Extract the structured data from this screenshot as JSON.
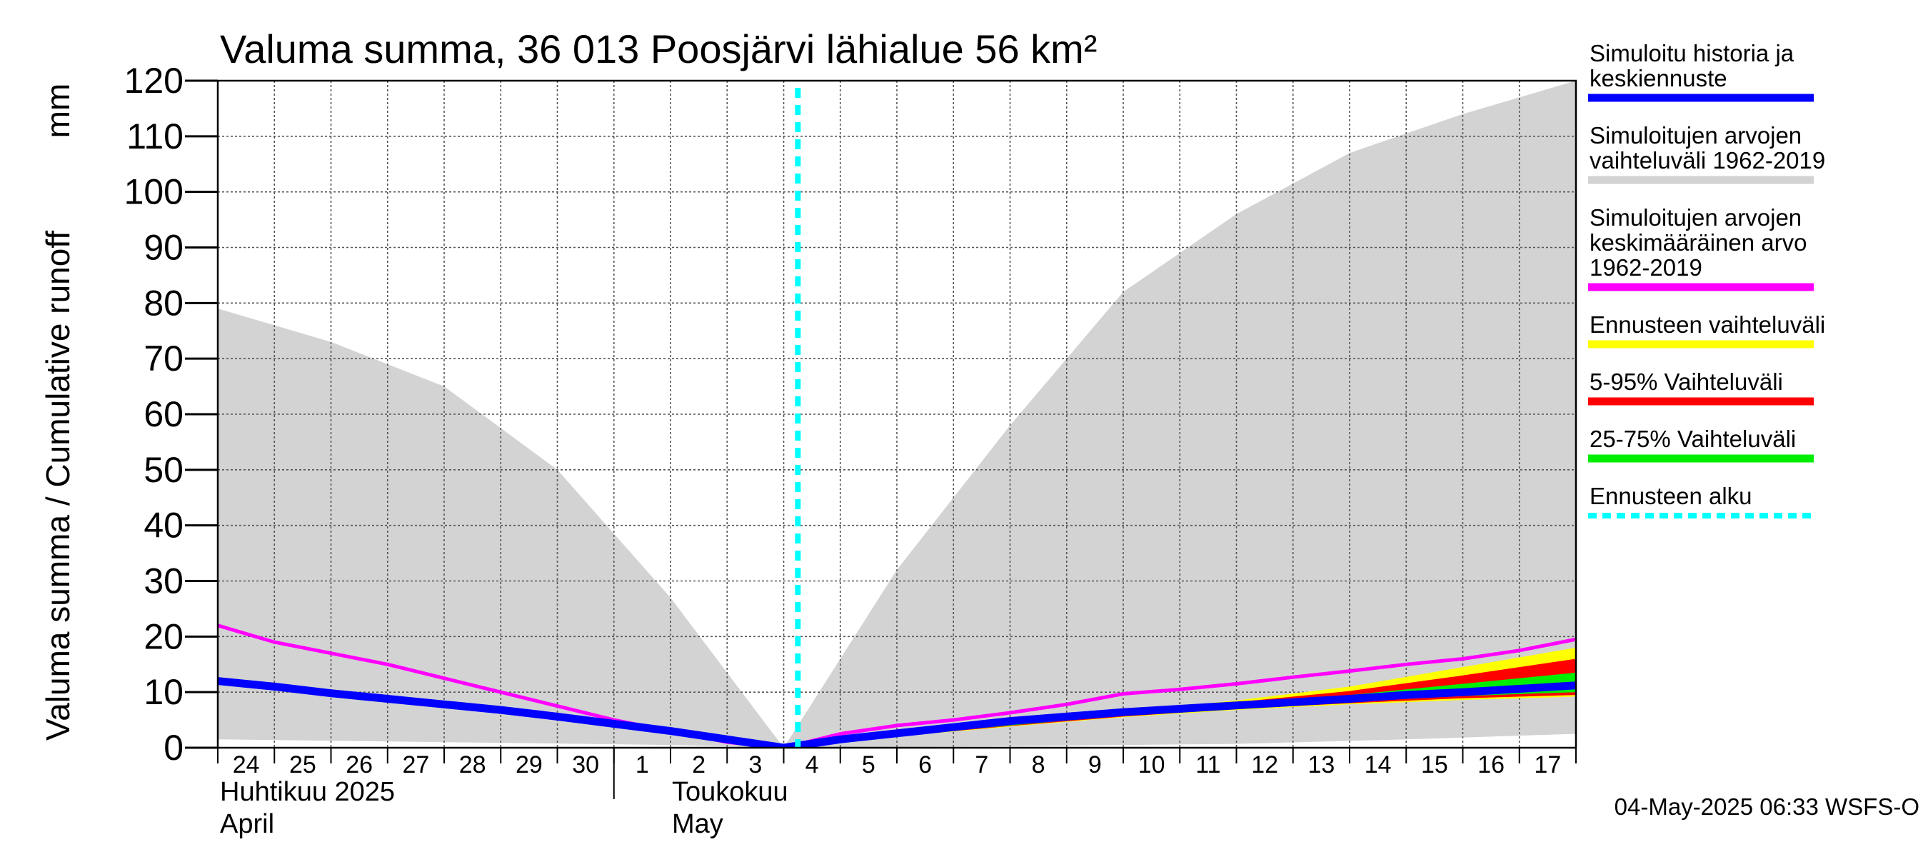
{
  "chart_data": {
    "type": "area",
    "title": "Valuma summa, 36 013 Poosjärvi lähialue 56 km²",
    "ylabel": "Valuma summa / Cumulative runoff",
    "yunit": "mm",
    "ylim": [
      0,
      120
    ],
    "yticks": [
      0,
      10,
      20,
      30,
      40,
      50,
      60,
      70,
      80,
      90,
      100,
      110,
      120
    ],
    "grid": true,
    "legend_position": "right",
    "x": [
      "2025-04-24",
      "2025-04-25",
      "2025-04-26",
      "2025-04-27",
      "2025-04-28",
      "2025-04-29",
      "2025-04-30",
      "2025-05-01",
      "2025-05-02",
      "2025-05-03",
      "2025-05-04",
      "2025-05-05",
      "2025-05-06",
      "2025-05-07",
      "2025-05-08",
      "2025-05-09",
      "2025-05-10",
      "2025-05-11",
      "2025-05-12",
      "2025-05-13",
      "2025-05-14",
      "2025-05-15",
      "2025-05-16",
      "2025-05-17",
      "2025-05-18"
    ],
    "xlim": [
      "2025-04-24",
      "2025-05-18"
    ],
    "xtick_labels": [
      "24",
      "25",
      "26",
      "27",
      "28",
      "29",
      "30",
      "1",
      "2",
      "3",
      "4",
      "5",
      "6",
      "7",
      "8",
      "9",
      "10",
      "11",
      "12",
      "13",
      "14",
      "15",
      "16",
      "17"
    ],
    "month_labels": [
      {
        "fi": "Huhtikuu  2025",
        "en": "April"
      },
      {
        "fi": "Toukokuu",
        "en": "May"
      }
    ],
    "forecast_start": "2025-05-04 06:00",
    "series": [
      {
        "name": "Simuloitujen arvojen vaihteluväli 1962-2019",
        "role": "hist-range",
        "color": "#d3d3d3",
        "upper": [
          {
            "x": "2025-04-24",
            "y": 79
          },
          {
            "x": "2025-04-26",
            "y": 73
          },
          {
            "x": "2025-04-28",
            "y": 65
          },
          {
            "x": "2025-04-30",
            "y": 50
          },
          {
            "x": "2025-05-02",
            "y": 27
          },
          {
            "x": "2025-05-04",
            "y": 0
          },
          {
            "x": "2025-05-06",
            "y": 32
          },
          {
            "x": "2025-05-08",
            "y": 58
          },
          {
            "x": "2025-05-10",
            "y": 82
          },
          {
            "x": "2025-05-12",
            "y": 96
          },
          {
            "x": "2025-05-14",
            "y": 107
          },
          {
            "x": "2025-05-16",
            "y": 114
          },
          {
            "x": "2025-05-18",
            "y": 120
          }
        ],
        "lower": [
          {
            "x": "2025-04-24",
            "y": 1.5
          },
          {
            "x": "2025-04-28",
            "y": 1
          },
          {
            "x": "2025-05-02",
            "y": 0.5
          },
          {
            "x": "2025-05-04",
            "y": 0
          },
          {
            "x": "2025-05-08",
            "y": 0.3
          },
          {
            "x": "2025-05-12",
            "y": 0.7
          },
          {
            "x": "2025-05-15",
            "y": 1.5
          },
          {
            "x": "2025-05-18",
            "y": 2.5
          }
        ]
      },
      {
        "name": "Ennusteen vaihteluväli",
        "role": "fc-range",
        "color": "#ffff00",
        "upper": [
          {
            "x": "2025-05-04",
            "y": 0
          },
          {
            "x": "2025-05-06",
            "y": 2.5
          },
          {
            "x": "2025-05-08",
            "y": 4.5
          },
          {
            "x": "2025-05-10",
            "y": 6.5
          },
          {
            "x": "2025-05-12",
            "y": 8.5
          },
          {
            "x": "2025-05-14",
            "y": 11
          },
          {
            "x": "2025-05-16",
            "y": 14.5
          },
          {
            "x": "2025-05-18",
            "y": 18
          }
        ],
        "lower": [
          {
            "x": "2025-05-04",
            "y": 0
          },
          {
            "x": "2025-05-06",
            "y": 2
          },
          {
            "x": "2025-05-08",
            "y": 3.8
          },
          {
            "x": "2025-05-10",
            "y": 5.5
          },
          {
            "x": "2025-05-12",
            "y": 6.8
          },
          {
            "x": "2025-05-14",
            "y": 7.8
          },
          {
            "x": "2025-05-16",
            "y": 8.6
          },
          {
            "x": "2025-05-18",
            "y": 9.2
          }
        ]
      },
      {
        "name": "5-95% Vaihteluväli",
        "role": "fc-5-95",
        "color": "#ff0000",
        "upper": [
          {
            "x": "2025-05-04",
            "y": 0
          },
          {
            "x": "2025-05-06",
            "y": 2.4
          },
          {
            "x": "2025-05-08",
            "y": 4.4
          },
          {
            "x": "2025-05-10",
            "y": 6.3
          },
          {
            "x": "2025-05-12",
            "y": 8.2
          },
          {
            "x": "2025-05-14",
            "y": 10.2
          },
          {
            "x": "2025-05-16",
            "y": 13
          },
          {
            "x": "2025-05-18",
            "y": 16
          }
        ],
        "lower": [
          {
            "x": "2025-05-04",
            "y": 0
          },
          {
            "x": "2025-05-06",
            "y": 2.1
          },
          {
            "x": "2025-05-08",
            "y": 3.9
          },
          {
            "x": "2025-05-10",
            "y": 5.6
          },
          {
            "x": "2025-05-12",
            "y": 7
          },
          {
            "x": "2025-05-14",
            "y": 8
          },
          {
            "x": "2025-05-16",
            "y": 8.9
          },
          {
            "x": "2025-05-18",
            "y": 9.5
          }
        ]
      },
      {
        "name": "25-75% Vaihteluväli",
        "role": "fc-25-75",
        "color": "#00ee00",
        "upper": [
          {
            "x": "2025-05-04",
            "y": 0
          },
          {
            "x": "2025-05-06",
            "y": 2.3
          },
          {
            "x": "2025-05-08",
            "y": 4.3
          },
          {
            "x": "2025-05-10",
            "y": 6.1
          },
          {
            "x": "2025-05-12",
            "y": 7.8
          },
          {
            "x": "2025-05-14",
            "y": 9.5
          },
          {
            "x": "2025-05-16",
            "y": 11.5
          },
          {
            "x": "2025-05-18",
            "y": 13.5
          }
        ],
        "lower": [
          {
            "x": "2025-05-04",
            "y": 0
          },
          {
            "x": "2025-05-06",
            "y": 2.2
          },
          {
            "x": "2025-05-08",
            "y": 4
          },
          {
            "x": "2025-05-10",
            "y": 5.8
          },
          {
            "x": "2025-05-12",
            "y": 7.2
          },
          {
            "x": "2025-05-14",
            "y": 8.4
          },
          {
            "x": "2025-05-16",
            "y": 9.3
          },
          {
            "x": "2025-05-18",
            "y": 10
          }
        ]
      },
      {
        "name": "Simuloitujen arvojen keskimääräinen arvo 1962-2019",
        "role": "hist-mean",
        "color": "#ff00ff",
        "points": [
          {
            "x": "2025-04-24",
            "y": 22
          },
          {
            "x": "2025-04-25",
            "y": 19
          },
          {
            "x": "2025-04-26",
            "y": 17
          },
          {
            "x": "2025-04-27",
            "y": 15
          },
          {
            "x": "2025-04-28",
            "y": 12.5
          },
          {
            "x": "2025-04-29",
            "y": 10
          },
          {
            "x": "2025-04-30",
            "y": 7.5
          },
          {
            "x": "2025-05-01",
            "y": 5
          },
          {
            "x": "2025-05-02",
            "y": 3
          },
          {
            "x": "2025-05-03",
            "y": 1
          },
          {
            "x": "2025-05-04",
            "y": 0
          },
          {
            "x": "2025-05-05",
            "y": 2.5
          },
          {
            "x": "2025-05-06",
            "y": 4
          },
          {
            "x": "2025-05-07",
            "y": 5
          },
          {
            "x": "2025-05-08",
            "y": 6.3
          },
          {
            "x": "2025-05-09",
            "y": 7.8
          },
          {
            "x": "2025-05-10",
            "y": 9.7
          },
          {
            "x": "2025-05-11",
            "y": 10.5
          },
          {
            "x": "2025-05-12",
            "y": 11.5
          },
          {
            "x": "2025-05-13",
            "y": 12.7
          },
          {
            "x": "2025-05-14",
            "y": 13.8
          },
          {
            "x": "2025-05-15",
            "y": 15
          },
          {
            "x": "2025-05-16",
            "y": 16
          },
          {
            "x": "2025-05-17",
            "y": 17.5
          },
          {
            "x": "2025-05-18",
            "y": 19.5
          }
        ]
      },
      {
        "name": "Simuloitu historia ja keskiennuste",
        "role": "sim-median",
        "color": "#0000ff",
        "points": [
          {
            "x": "2025-04-24",
            "y": 12
          },
          {
            "x": "2025-04-25",
            "y": 11
          },
          {
            "x": "2025-04-26",
            "y": 9.8
          },
          {
            "x": "2025-04-27",
            "y": 8.8
          },
          {
            "x": "2025-04-28",
            "y": 7.8
          },
          {
            "x": "2025-04-29",
            "y": 6.8
          },
          {
            "x": "2025-04-30",
            "y": 5.6
          },
          {
            "x": "2025-05-01",
            "y": 4.3
          },
          {
            "x": "2025-05-02",
            "y": 3
          },
          {
            "x": "2025-05-03",
            "y": 1.5
          },
          {
            "x": "2025-05-04",
            "y": 0
          },
          {
            "x": "2025-05-05",
            "y": 1.5
          },
          {
            "x": "2025-05-06",
            "y": 2.6
          },
          {
            "x": "2025-05-07",
            "y": 3.7
          },
          {
            "x": "2025-05-08",
            "y": 4.8
          },
          {
            "x": "2025-05-09",
            "y": 5.6
          },
          {
            "x": "2025-05-10",
            "y": 6.4
          },
          {
            "x": "2025-05-11",
            "y": 7
          },
          {
            "x": "2025-05-12",
            "y": 7.6
          },
          {
            "x": "2025-05-13",
            "y": 8.2
          },
          {
            "x": "2025-05-14",
            "y": 8.8
          },
          {
            "x": "2025-05-15",
            "y": 9.5
          },
          {
            "x": "2025-05-16",
            "y": 10
          },
          {
            "x": "2025-05-17",
            "y": 10.6
          },
          {
            "x": "2025-05-18",
            "y": 11.2
          }
        ]
      }
    ],
    "legend": [
      {
        "lines": [
          "Simuloitu historia ja",
          "keskiennuste"
        ],
        "color": "#0000ff",
        "dash": false
      },
      {
        "lines": [
          "Simuloitujen arvojen",
          "vaihteluväli 1962-2019"
        ],
        "color": "#d3d3d3",
        "dash": false
      },
      {
        "lines": [
          "Simuloitujen arvojen",
          "keskimääräinen arvo",
          "   1962-2019"
        ],
        "color": "#ff00ff",
        "dash": false
      },
      {
        "lines": [
          "Ennusteen vaihteluväli"
        ],
        "color": "#ffff00",
        "dash": false
      },
      {
        "lines": [
          "5-95% Vaihteluväli"
        ],
        "color": "#ff0000",
        "dash": false
      },
      {
        "lines": [
          "25-75% Vaihteluväli"
        ],
        "color": "#00ee00",
        "dash": false
      },
      {
        "lines": [
          "Ennusteen alku"
        ],
        "color": "#00ffff",
        "dash": true
      }
    ],
    "timestamp": "04-May-2025 06:33 WSFS-O"
  }
}
